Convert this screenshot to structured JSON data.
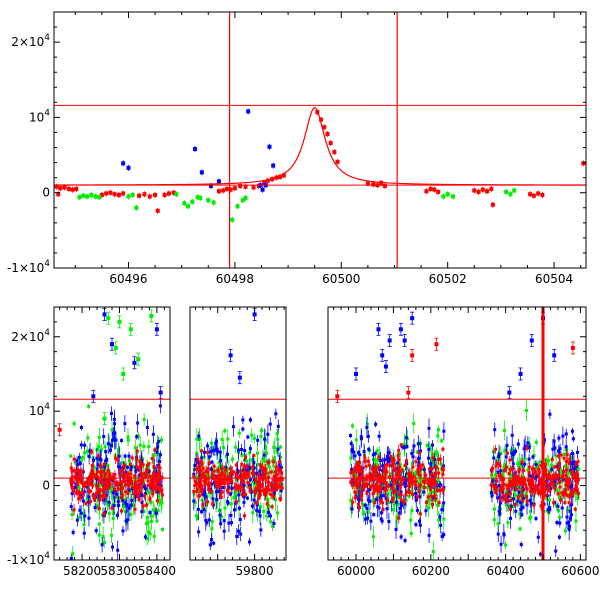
{
  "chart_data": [
    {
      "type": "scatter",
      "panel": "top",
      "title": "",
      "xlabel": "",
      "ylabel": "",
      "xlim": [
        60494.6,
        60504.6
      ],
      "ylim": [
        -10000,
        24000
      ],
      "xticks": [
        {
          "value": 60496,
          "label": "60496"
        },
        {
          "value": 60498,
          "label": "60498"
        },
        {
          "value": 60500,
          "label": "60500"
        },
        {
          "value": 60502,
          "label": "60502"
        },
        {
          "value": 60504,
          "label": "60504"
        }
      ],
      "yticks": [
        {
          "value": 20000,
          "base": "2×10",
          "exp": "4"
        },
        {
          "value": 10000,
          "base": "10",
          "exp": "4"
        },
        {
          "value": 0,
          "base": "0",
          "exp": ""
        },
        {
          "value": -10000,
          "base": "-1×10",
          "exp": "4"
        }
      ],
      "hlines": [
        11600,
        1000
      ],
      "vlines": [
        60497.9,
        60501.05
      ],
      "model_curve": {
        "peak_x": 60499.5,
        "peak_y": 11300,
        "baseline": 1000,
        "width": 0.24,
        "color": "#ff0000"
      },
      "colors": {
        "red": "#ff0000",
        "green": "#00ee00",
        "blue": "#0000ff",
        "line": "#ff0000"
      },
      "series": [
        {
          "color": "red",
          "points": [
            [
              60494.65,
              800
            ],
            [
              60494.72,
              600
            ],
            [
              60494.8,
              700
            ],
            [
              60494.88,
              500
            ],
            [
              60494.95,
              400
            ],
            [
              60495.02,
              500
            ],
            [
              60494.68,
              -200
            ],
            [
              60495.5,
              -300
            ],
            [
              60495.58,
              -100
            ],
            [
              60495.66,
              0
            ],
            [
              60495.74,
              -200
            ],
            [
              60495.82,
              -300
            ],
            [
              60495.9,
              -100
            ],
            [
              60496.2,
              -400
            ],
            [
              60496.3,
              -200
            ],
            [
              60496.4,
              -500
            ],
            [
              60496.5,
              -300
            ],
            [
              60496.55,
              -2400
            ],
            [
              60496.68,
              -300
            ],
            [
              60496.76,
              -100
            ],
            [
              60496.85,
              0
            ],
            [
              60497.7,
              200
            ],
            [
              60497.78,
              300
            ],
            [
              60497.85,
              500
            ],
            [
              60497.92,
              400
            ],
            [
              60498.0,
              600
            ],
            [
              60498.1,
              900
            ],
            [
              60498.2,
              800
            ],
            [
              60498.35,
              700
            ],
            [
              60498.45,
              900
            ],
            [
              60498.55,
              1300
            ],
            [
              60498.62,
              1600
            ],
            [
              60498.7,
              1800
            ],
            [
              60498.78,
              2000
            ],
            [
              60498.85,
              2100
            ],
            [
              60498.92,
              2300
            ],
            [
              60499.55,
              10700
            ],
            [
              60499.62,
              9700
            ],
            [
              60499.68,
              8700
            ],
            [
              60499.74,
              7800
            ],
            [
              60499.8,
              6600
            ],
            [
              60499.87,
              5400
            ],
            [
              60499.93,
              4100
            ],
            [
              60500.5,
              1200
            ],
            [
              60500.6,
              1100
            ],
            [
              60500.68,
              1000
            ],
            [
              60500.75,
              1300
            ],
            [
              60500.82,
              900
            ],
            [
              60501.6,
              200
            ],
            [
              60501.68,
              500
            ],
            [
              60501.75,
              400
            ],
            [
              60501.82,
              100
            ],
            [
              60502.5,
              300
            ],
            [
              60502.58,
              100
            ],
            [
              60502.66,
              400
            ],
            [
              60502.74,
              200
            ],
            [
              60502.82,
              500
            ],
            [
              60502.85,
              -1600
            ],
            [
              60503.55,
              -200
            ],
            [
              60503.62,
              -400
            ],
            [
              60503.7,
              -100
            ],
            [
              60503.78,
              -300
            ],
            [
              60504.55,
              3900
            ]
          ]
        },
        {
          "color": "green",
          "points": [
            [
              60495.08,
              -600
            ],
            [
              60495.15,
              -400
            ],
            [
              60495.22,
              -500
            ],
            [
              60495.3,
              -300
            ],
            [
              60495.38,
              -500
            ],
            [
              60495.45,
              -600
            ],
            [
              60496.0,
              -500
            ],
            [
              60496.08,
              -300
            ],
            [
              60496.15,
              -2000
            ],
            [
              60496.9,
              -200
            ],
            [
              60497.05,
              -1400
            ],
            [
              60497.12,
              -1800
            ],
            [
              60497.2,
              -1200
            ],
            [
              60497.3,
              -600
            ],
            [
              60497.35,
              -700
            ],
            [
              60497.5,
              -1000
            ],
            [
              60497.6,
              -1300
            ],
            [
              60497.95,
              -3600
            ],
            [
              60498.05,
              -1800
            ],
            [
              60498.15,
              -1000
            ],
            [
              60498.2,
              -700
            ],
            [
              60501.92,
              -500
            ],
            [
              60502.0,
              -200
            ],
            [
              60502.1,
              -500
            ],
            [
              60503.1,
              100
            ],
            [
              60503.18,
              -200
            ],
            [
              60503.25,
              300
            ]
          ]
        },
        {
          "color": "blue",
          "points": [
            [
              60495.9,
              3900
            ],
            [
              60496.0,
              3300
            ],
            [
              60497.25,
              5800
            ],
            [
              60497.38,
              2700
            ],
            [
              60497.55,
              900
            ],
            [
              60497.7,
              1500
            ],
            [
              60498.25,
              10800
            ],
            [
              60498.48,
              1000
            ],
            [
              60498.52,
              400
            ],
            [
              60498.58,
              1000
            ],
            [
              60498.65,
              6100
            ],
            [
              60498.72,
              3600
            ]
          ]
        }
      ]
    },
    {
      "type": "scatter",
      "panel": "bottom",
      "title": "",
      "xlabel": "",
      "ylabel": "",
      "broken_x_axis": true,
      "segments": [
        {
          "xlim": [
            58125,
            58435
          ]
        },
        {
          "xlim": [
            59625,
            59885
          ]
        },
        {
          "xlim": [
            59925,
            60615
          ]
        }
      ],
      "ylim": [
        -10000,
        24000
      ],
      "xticks": [
        {
          "value": 58200,
          "label": "58200"
        },
        {
          "value": 58300,
          "label": "58300"
        },
        {
          "value": 58400,
          "label": "58400"
        },
        {
          "value": 59800,
          "label": "59800"
        },
        {
          "value": 60000,
          "label": "60000"
        },
        {
          "value": 60200,
          "label": "60200"
        },
        {
          "value": 60400,
          "label": "60400"
        },
        {
          "value": 60600,
          "label": "60600"
        }
      ],
      "yticks": [
        {
          "value": 20000,
          "base": "2×10",
          "exp": "4"
        },
        {
          "value": 10000,
          "base": "10",
          "exp": "4"
        },
        {
          "value": 0,
          "base": "0",
          "exp": ""
        },
        {
          "value": -10000,
          "base": "-1×10",
          "exp": "4"
        }
      ],
      "hlines": [
        11600,
        1000
      ],
      "vlines": [
        60500
      ],
      "seasons": [
        {
          "x": [
            58170,
            58415
          ],
          "sigma": {
            "red": 1500,
            "green": 3500,
            "blue": 4000
          },
          "n": 170
        },
        {
          "x": [
            59635,
            59875
          ],
          "sigma": {
            "red": 1500,
            "green": 3000,
            "blue": 3500
          },
          "n": 160
        },
        {
          "x": [
            59985,
            60235
          ],
          "sigma": {
            "red": 1600,
            "green": 3000,
            "blue": 3500
          },
          "n": 170
        },
        {
          "x": [
            60360,
            60595
          ],
          "sigma": {
            "red": 1500,
            "green": 2800,
            "blue": 3800
          },
          "n": 160
        }
      ],
      "outliers": [
        {
          "color": "green",
          "points": [
            [
              58270,
              22500
            ],
            [
              58300,
              22000
            ],
            [
              58330,
              21000
            ],
            [
              58290,
              18500
            ],
            [
              58350,
              17000
            ],
            [
              58310,
              15000
            ],
            [
              58385,
              22800
            ],
            [
              58260,
              9000
            ]
          ]
        },
        {
          "color": "blue",
          "points": [
            [
              58260,
              23000
            ],
            [
              58280,
              19000
            ],
            [
              58340,
              16500
            ],
            [
              58400,
              21000
            ],
            [
              58410,
              12500
            ],
            [
              58230,
              12000
            ],
            [
              59800,
              23000
            ],
            [
              59735,
              17500
            ],
            [
              59760,
              14500
            ],
            [
              60090,
              19500
            ],
            [
              60150,
              22500
            ],
            [
              60060,
              21000
            ],
            [
              60070,
              17500
            ],
            [
              60080,
              16000
            ],
            [
              60470,
              19500
            ],
            [
              60500,
              22500
            ],
            [
              60530,
              17500
            ],
            [
              60440,
              15000
            ],
            [
              60000,
              15000
            ],
            [
              60120,
              21000
            ],
            [
              60130,
              19500
            ],
            [
              60410,
              12500
            ]
          ]
        },
        {
          "color": "red",
          "points": [
            [
              60215,
              19000
            ],
            [
              60580,
              18500
            ],
            [
              60150,
              17500
            ],
            [
              58140,
              7500
            ],
            [
              59950,
              12000
            ],
            [
              60140,
              12500
            ]
          ]
        }
      ],
      "colors": {
        "red": "#ff0000",
        "green": "#00ee00",
        "blue": "#0000ff",
        "line": "#ff0000"
      }
    }
  ]
}
